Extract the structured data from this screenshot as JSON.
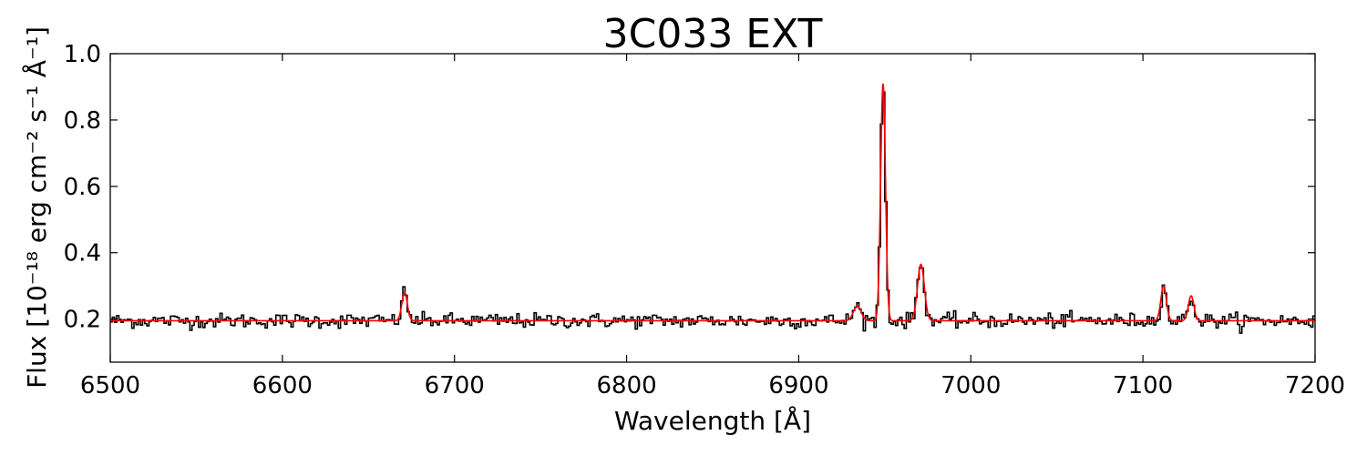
{
  "chart_data": {
    "type": "line",
    "title": "3C033 EXT",
    "xlabel": "Wavelength [Å]",
    "ylabel": "Flux [10⁻¹⁸ erg cm⁻² s⁻¹ Å⁻¹]",
    "xlim": [
      6500,
      7200
    ],
    "ylim": [
      0.07,
      1.0
    ],
    "xticks": [
      6500,
      6600,
      6700,
      6800,
      6900,
      7000,
      7100,
      7200
    ],
    "yticks": [
      0.2,
      0.4,
      0.6,
      0.8,
      1.0
    ],
    "ytick_labels": [
      "0.2",
      "0.4",
      "0.6",
      "0.8",
      "1.0"
    ],
    "grid": false,
    "series": [
      {
        "style": "step",
        "color": "#000000"
      },
      {
        "style": "smooth",
        "color": "#ff0000"
      }
    ],
    "continuum": 0.195,
    "model_lines": [
      {
        "center": 6671,
        "amplitude": 0.085,
        "sigma": 1.6
      },
      {
        "center": 6934,
        "amplitude": 0.045,
        "sigma": 2.2
      },
      {
        "center": 6949,
        "amplitude": 0.715,
        "sigma": 1.4
      },
      {
        "center": 6971,
        "amplitude": 0.17,
        "sigma": 2.0
      },
      {
        "center": 7112,
        "amplitude": 0.105,
        "sigma": 1.6
      },
      {
        "center": 7128,
        "amplitude": 0.075,
        "sigma": 1.6
      }
    ],
    "spectrum_bin_width": 1.25,
    "spectrum_noise_sigma": 0.011
  }
}
